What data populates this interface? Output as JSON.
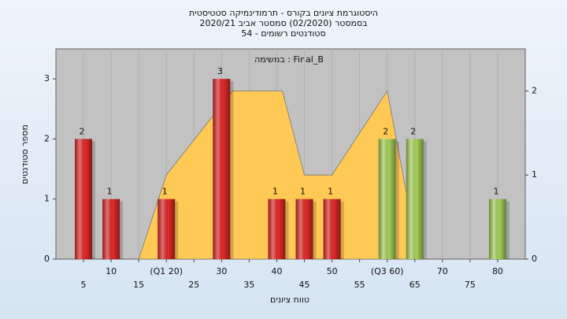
{
  "chart_data": {
    "type": "histogram",
    "title": [
      "היסטוגרמת ציונים בקורס - תרמודינמיקה סטטיסטית",
      "בסמסטר  (02/2020)  סמסטר אביב 2020/21",
      "סטודנטים רשומים - 54"
    ],
    "annotation": "במשימה : Final_B",
    "x_label": "טווח ציונים",
    "y_label": "מספר סטודנטים",
    "xlim": [
      0,
      85
    ],
    "xticks": [
      5,
      10,
      15,
      {
        "value": 20,
        "label": "(Q1 20)"
      },
      25,
      30,
      35,
      40,
      45,
      50,
      55,
      {
        "value": 60,
        "label": "(Q3 60)"
      },
      65,
      70,
      75,
      80
    ],
    "ylim": [
      0,
      3.5
    ],
    "yticks": [
      0,
      1,
      2,
      3
    ],
    "y2lim": [
      0,
      2.5
    ],
    "y2ticks": [
      0,
      1,
      2
    ],
    "bars": {
      "x": [
        5,
        10,
        20,
        30,
        40,
        45,
        50,
        60,
        65,
        80
      ],
      "values": [
        2,
        1,
        1,
        3,
        1,
        1,
        1,
        2,
        2,
        1
      ],
      "colors": [
        "#e02a2a",
        "#e02a2a",
        "#e02a2a",
        "#e02a2a",
        "#e02a2a",
        "#e02a2a",
        "#e02a2a",
        "#a6d05a",
        "#a6d05a",
        "#a6d05a"
      ]
    },
    "area": {
      "axis": "y2",
      "color": "#ffc955",
      "x": [
        15,
        20,
        32,
        41,
        45,
        50,
        60,
        64
      ],
      "values": [
        0,
        1,
        2,
        2,
        1,
        1,
        2,
        0.6
      ]
    },
    "grid": true
  }
}
